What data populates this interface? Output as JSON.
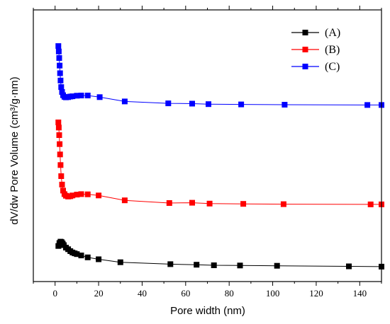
{
  "chart_data": {
    "type": "line",
    "xlabel": "Pore width (nm)",
    "ylabel": "dV/dw Pore Volume (cm³/g·nm)",
    "xlim": [
      -10,
      150
    ],
    "ylim": [
      0,
      100
    ],
    "x_ticks": [
      0,
      20,
      40,
      60,
      80,
      100,
      120,
      140
    ],
    "y_ticks_labeled": false,
    "grid": false,
    "legend_position": "top-right",
    "series": [
      {
        "name": "(A)",
        "color": "#000000",
        "marker": "square",
        "points": [
          [
            1.5,
            13.1
          ],
          [
            2,
            14.2
          ],
          [
            2.5,
            14.7
          ],
          [
            3,
            14.5
          ],
          [
            3.5,
            14.0
          ],
          [
            4,
            13.4
          ],
          [
            5,
            12.5
          ],
          [
            6,
            11.9
          ],
          [
            7,
            11.2
          ],
          [
            8,
            10.7
          ],
          [
            9,
            10.4
          ],
          [
            10,
            10.1
          ],
          [
            12,
            9.6
          ],
          [
            15,
            8.9
          ],
          [
            20,
            8.2
          ],
          [
            30,
            7.1
          ],
          [
            53,
            6.4
          ],
          [
            65,
            6.2
          ],
          [
            73,
            6.0
          ],
          [
            85,
            5.9
          ],
          [
            102,
            5.8
          ],
          [
            135,
            5.6
          ],
          [
            150,
            5.5
          ]
        ]
      },
      {
        "name": "(B)",
        "color": "#ff0000",
        "marker": "square",
        "points": [
          [
            1.5,
            58.6
          ],
          [
            1.7,
            56.7
          ],
          [
            1.9,
            53.9
          ],
          [
            2.1,
            50.6
          ],
          [
            2.3,
            46.8
          ],
          [
            2.5,
            42.9
          ],
          [
            2.8,
            38.8
          ],
          [
            3.2,
            35.7
          ],
          [
            3.7,
            33.5
          ],
          [
            4.3,
            32.2
          ],
          [
            5,
            31.6
          ],
          [
            6,
            31.3
          ],
          [
            7,
            31.4
          ],
          [
            8,
            31.7
          ],
          [
            10,
            32.0
          ],
          [
            12,
            32.2
          ],
          [
            15,
            32.1
          ],
          [
            20,
            31.7
          ],
          [
            32,
            29.9
          ],
          [
            52.5,
            28.9
          ],
          [
            63,
            29.0
          ],
          [
            71,
            28.7
          ],
          [
            86.5,
            28.6
          ],
          [
            105,
            28.5
          ],
          [
            145,
            28.4
          ],
          [
            150,
            28.4
          ]
        ]
      },
      {
        "name": "(C)",
        "color": "#0000ff",
        "marker": "square",
        "points": [
          [
            1.5,
            86.7
          ],
          [
            1.7,
            84.7
          ],
          [
            1.9,
            82.3
          ],
          [
            2.1,
            79.5
          ],
          [
            2.3,
            76.7
          ],
          [
            2.5,
            74.0
          ],
          [
            2.8,
            71.6
          ],
          [
            3.2,
            69.8
          ],
          [
            3.7,
            68.6
          ],
          [
            4.3,
            68.0
          ],
          [
            5,
            67.8
          ],
          [
            6,
            67.9
          ],
          [
            7,
            68.1
          ],
          [
            8,
            68.2
          ],
          [
            10,
            68.4
          ],
          [
            12,
            68.5
          ],
          [
            15,
            68.5
          ],
          [
            20.5,
            67.9
          ],
          [
            32,
            66.3
          ],
          [
            52,
            65.6
          ],
          [
            63,
            65.5
          ],
          [
            70.5,
            65.3
          ],
          [
            85.5,
            65.2
          ],
          [
            105.5,
            65.1
          ],
          [
            143.5,
            65.0
          ],
          [
            150,
            65.0
          ]
        ]
      }
    ]
  }
}
